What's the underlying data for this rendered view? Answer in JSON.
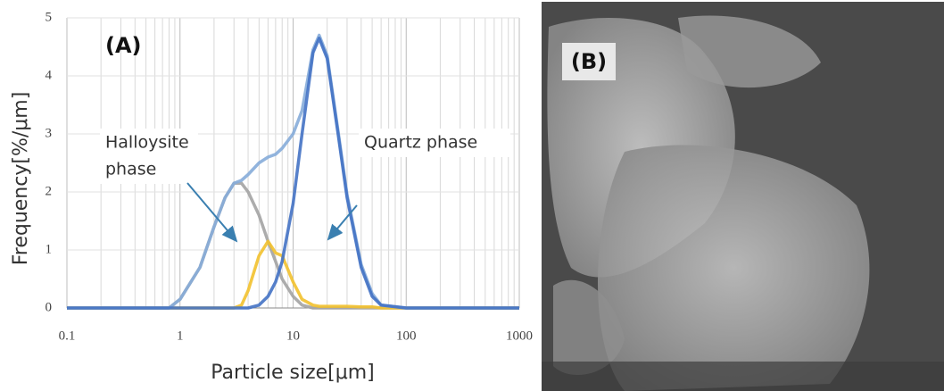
{
  "chart_data": {
    "type": "line",
    "panel_label": "(A)",
    "xlabel": "Particle size[μm]",
    "ylabel": "Frequency[%/μm]",
    "xscale": "log",
    "grid": true,
    "minor_grid": true,
    "xlim": [
      0.1,
      1000
    ],
    "xticks": [
      0.1,
      1,
      10,
      100,
      1000
    ],
    "ylim": [
      0,
      5
    ],
    "yticks": [
      0,
      1,
      2,
      3,
      4,
      5
    ],
    "x": [
      0.1,
      0.5,
      0.8,
      1,
      1.5,
      2,
      2.5,
      3,
      3.5,
      4,
      5,
      6,
      7,
      8,
      10,
      12,
      15,
      17,
      20,
      25,
      30,
      40,
      50,
      60,
      100,
      1000
    ],
    "series": [
      {
        "color": "#a3a3a3",
        "values": [
          0,
          0,
          0,
          0.15,
          0.7,
          1.4,
          1.9,
          2.15,
          2.15,
          2.0,
          1.6,
          1.15,
          0.8,
          0.5,
          0.2,
          0.05,
          0,
          0,
          0,
          0,
          0,
          0,
          0,
          0,
          0,
          0
        ]
      },
      {
        "color": "#f2c12e",
        "values": [
          0,
          0,
          0,
          0,
          0,
          0,
          0,
          0,
          0.05,
          0.3,
          0.9,
          1.15,
          0.95,
          0.9,
          0.45,
          0.15,
          0.05,
          0.03,
          0.03,
          0.03,
          0.03,
          0.02,
          0.02,
          0,
          0,
          0
        ]
      },
      {
        "color": "#86acd9",
        "values": [
          0,
          0,
          0,
          0.15,
          0.7,
          1.4,
          1.9,
          2.15,
          2.2,
          2.3,
          2.5,
          2.6,
          2.65,
          2.75,
          3.0,
          3.4,
          4.45,
          4.7,
          4.35,
          3.05,
          1.95,
          0.75,
          0.25,
          0.05,
          0,
          0
        ]
      },
      {
        "color": "#4472c4",
        "values": [
          0,
          0,
          0,
          0,
          0,
          0,
          0,
          0,
          0,
          0,
          0.05,
          0.2,
          0.45,
          0.8,
          1.8,
          3.0,
          4.4,
          4.65,
          4.3,
          3.0,
          1.9,
          0.7,
          0.2,
          0.05,
          0,
          0
        ]
      }
    ],
    "annotations": [
      {
        "lines": [
          "Halloysite",
          "phase"
        ]
      },
      {
        "lines": [
          "Quartz phase"
        ]
      }
    ]
  },
  "image": {
    "label": "(B)"
  }
}
